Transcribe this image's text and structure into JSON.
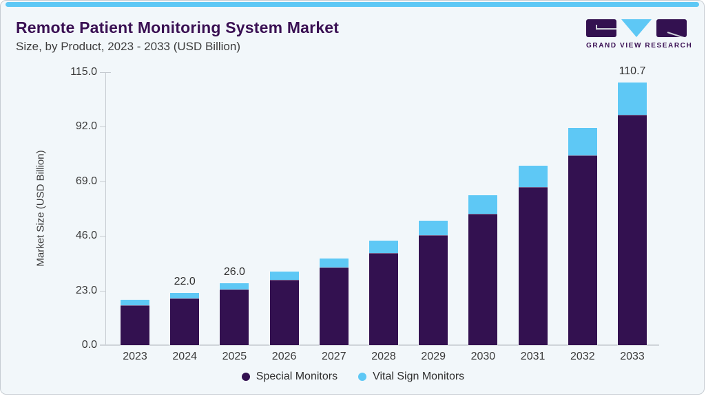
{
  "header": {
    "title": "Remote Patient Monitoring System Market",
    "subtitle": "Size, by Product, 2023 - 2033 (USD Billion)"
  },
  "logo": {
    "brand": "GRAND VIEW RESEARCH"
  },
  "theme": {
    "accent_purple": "#331150",
    "accent_blue": "#5EC8F5",
    "card_background": "#F2F7FA",
    "title_color": "#3A1053",
    "axis_color": "#C5CAD0"
  },
  "chart_data": {
    "type": "bar",
    "stacked": true,
    "title": "Remote Patient Monitoring System Market Size, by Product, 2023 - 2033 (USD Billion)",
    "categories": [
      "2023",
      "2024",
      "2025",
      "2026",
      "2027",
      "2028",
      "2029",
      "2030",
      "2031",
      "2032",
      "2033"
    ],
    "series": [
      {
        "name": "Special Monitors",
        "color": "#331150",
        "values": [
          16.9,
          19.8,
          23.4,
          27.6,
          32.7,
          38.8,
          46.3,
          55.4,
          66.5,
          80.0,
          97.0
        ]
      },
      {
        "name": "Vital Sign Monitors",
        "color": "#5EC8F5",
        "values": [
          2.1,
          2.2,
          2.6,
          3.4,
          3.8,
          5.1,
          6.1,
          7.7,
          9.0,
          11.4,
          13.7
        ]
      }
    ],
    "totals": [
      19.0,
      22.0,
      26.0,
      31.0,
      36.5,
      43.9,
      52.4,
      63.1,
      75.5,
      91.4,
      110.7
    ],
    "bar_labels": [
      "",
      "22.0",
      "26.0",
      "",
      "",
      "",
      "",
      "",
      "",
      "",
      "110.7"
    ],
    "xlabel": "",
    "ylabel": "Market Size (USD Billion)",
    "ylim": [
      0,
      115
    ],
    "yticks": [
      {
        "value": 0,
        "label": "0.0"
      },
      {
        "value": 23,
        "label": "23.0"
      },
      {
        "value": 46,
        "label": "46.0"
      },
      {
        "value": 69,
        "label": "69.0"
      },
      {
        "value": 92,
        "label": "92.0"
      },
      {
        "value": 115,
        "label": "115.0"
      }
    ],
    "grid": false,
    "legend_position": "bottom"
  }
}
